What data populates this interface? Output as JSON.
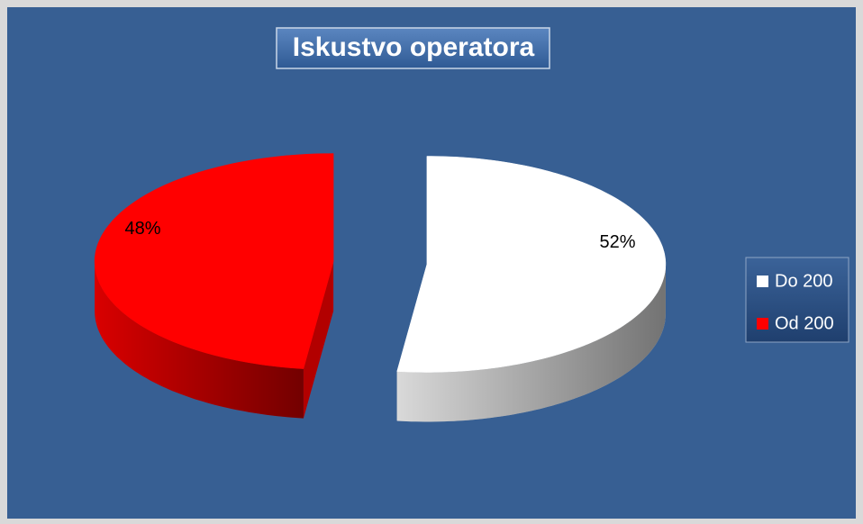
{
  "chart_data": {
    "type": "pie",
    "title": "Iskustvo operatora",
    "categories": [
      "Do 200",
      "Od 200"
    ],
    "values": [
      52,
      48
    ],
    "value_labels": [
      "52%",
      "48%"
    ],
    "colors": [
      "#ffffff",
      "#ff0000"
    ],
    "legend": "right"
  }
}
